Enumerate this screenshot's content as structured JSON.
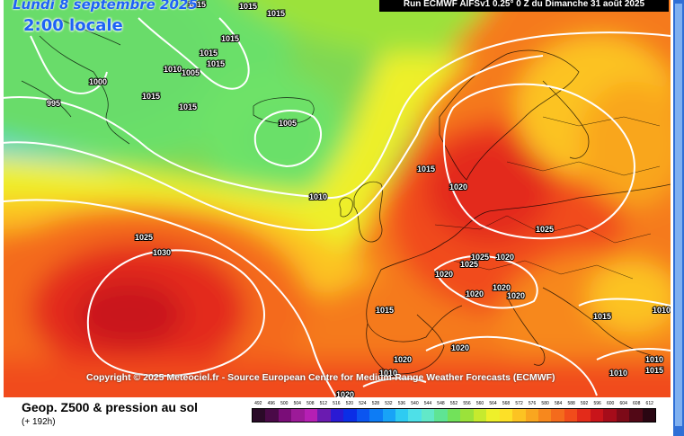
{
  "header": {
    "date_label": "Lundi 8 septembre 2025",
    "time_label": "2:00 locale",
    "run_label": "Run ECMWF AIFSv1 0.25° 0 Z du Dimanche 31 août 2025"
  },
  "map": {
    "copyright": "Copyright © 2025 Meteociel.fr - Source European Centre for Medium-Range Weather Forecasts (ECMWF)",
    "isobar_labels": [
      "1015",
      "1015",
      "1015",
      "1015",
      "1015",
      "1015",
      "1010",
      "1000",
      "1005",
      "995",
      "1015",
      "1015",
      "1005",
      "1010",
      "1015",
      "1025",
      "1030",
      "1020",
      "1025",
      "1020",
      "1025",
      "1025",
      "1020",
      "1020",
      "1020",
      "1020",
      "1015",
      "1020",
      "1020",
      "1015",
      "1010",
      "1010",
      "1010",
      "1015",
      "1010",
      "1020"
    ]
  },
  "legend": {
    "title": "Geop. Z500 & pression au sol",
    "subtitle": "(+ 192h)",
    "scale_labels": [
      "492",
      "496",
      "500",
      "504",
      "508",
      "512",
      "516",
      "520",
      "524",
      "528",
      "532",
      "536",
      "540",
      "544",
      "548",
      "552",
      "556",
      "560",
      "564",
      "568",
      "572",
      "576",
      "580",
      "584",
      "588",
      "592",
      "596",
      "600",
      "604",
      "608",
      "612"
    ],
    "scale_colors": [
      "#2a0a28",
      "#4a0a48",
      "#7a0d78",
      "#9c1a98",
      "#b61fb4",
      "#6a1bb0",
      "#2a1ad4",
      "#0b2ee6",
      "#0b55f0",
      "#0d7cf5",
      "#18a3f7",
      "#2ecbf2",
      "#4ee0e8",
      "#62e8c8",
      "#5fe494",
      "#72e25a",
      "#9be23a",
      "#c6ea2e",
      "#eef02a",
      "#fde027",
      "#fcc322",
      "#f9a61f",
      "#f7881d",
      "#f46b1c",
      "#f14c1b",
      "#e32b1a",
      "#c9141a",
      "#a60c1a",
      "#7d0a18",
      "#520816",
      "#2a0612"
    ]
  }
}
